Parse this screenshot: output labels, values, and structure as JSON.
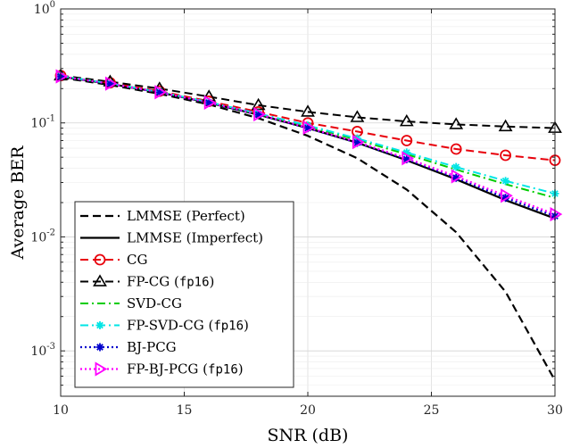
{
  "chart_data": {
    "type": "line",
    "xlabel": "SNR (dB)",
    "ylabel": "Average BER",
    "xlim": [
      10,
      30
    ],
    "ylim": [
      0.0004,
      1
    ],
    "yscale": "log",
    "grid": true,
    "legend_position": "bottom-left",
    "x_ticks": [
      10,
      15,
      20,
      25,
      30
    ],
    "x_tick_labels": [
      "10",
      "15",
      "20",
      "25",
      "30"
    ],
    "y_ticks": [
      {
        "value": 1,
        "base": "10",
        "exp": "0"
      },
      {
        "value": 0.1,
        "base": "10",
        "exp": "-1"
      },
      {
        "value": 0.01,
        "base": "10",
        "exp": "-2"
      },
      {
        "value": 0.001,
        "base": "10",
        "exp": "-3"
      }
    ],
    "x": [
      10,
      12,
      14,
      16,
      18,
      20,
      22,
      24,
      26,
      28,
      30
    ],
    "series": [
      {
        "name": "LMMSE (Perfect)",
        "label": "LMMSE (Perfect)",
        "label_code": "",
        "color": "#000000",
        "dash": "dashed",
        "width": 2.2,
        "marker": "none",
        "values": [
          0.25,
          0.215,
          0.18,
          0.145,
          0.11,
          0.077,
          0.049,
          0.026,
          0.011,
          0.0033,
          0.00055
        ]
      },
      {
        "name": "LMMSE (Imperfect)",
        "label": "LMMSE (Imperfect)",
        "label_code": "",
        "color": "#000000",
        "dash": "solid",
        "width": 2.2,
        "marker": "none",
        "values": [
          0.255,
          0.22,
          0.185,
          0.15,
          0.118,
          0.09,
          0.067,
          0.047,
          0.032,
          0.021,
          0.0145
        ]
      },
      {
        "name": "CG",
        "label": "CG",
        "label_code": "",
        "color": "#e8000b",
        "dash": "dashed",
        "width": 2,
        "marker": "circle",
        "values": [
          0.26,
          0.225,
          0.19,
          0.155,
          0.125,
          0.1,
          0.084,
          0.07,
          0.059,
          0.052,
          0.047
        ]
      },
      {
        "name": "FP-CG (fp16)",
        "label": "FP-CG (",
        "label_code": "fp16",
        "color": "#000000",
        "dash": "dashed",
        "width": 2,
        "marker": "triangle",
        "values": [
          0.26,
          0.23,
          0.2,
          0.17,
          0.143,
          0.125,
          0.112,
          0.103,
          0.097,
          0.093,
          0.09
        ]
      },
      {
        "name": "SVD-CG",
        "label": "SVD-CG",
        "label_code": "",
        "color": "#00cc00",
        "dash": "dashdot",
        "width": 2,
        "marker": "none",
        "values": [
          0.258,
          0.222,
          0.187,
          0.152,
          0.12,
          0.093,
          0.071,
          0.053,
          0.039,
          0.029,
          0.022
        ]
      },
      {
        "name": "FP-SVD-CG (fp16)",
        "label": "FP-SVD-CG (",
        "label_code": "fp16",
        "color": "#00e5e5",
        "dash": "dashdot",
        "width": 2,
        "marker": "asterisk",
        "values": [
          0.258,
          0.222,
          0.187,
          0.152,
          0.121,
          0.095,
          0.073,
          0.055,
          0.041,
          0.031,
          0.024
        ]
      },
      {
        "name": "BJ-PCG",
        "label": "BJ-PCG",
        "label_code": "",
        "color": "#0000cc",
        "dash": "dotted",
        "width": 2.2,
        "marker": "asterisk",
        "values": [
          0.255,
          0.22,
          0.185,
          0.15,
          0.118,
          0.09,
          0.067,
          0.048,
          0.033,
          0.022,
          0.0152
        ]
      },
      {
        "name": "FP-BJ-PCG (fp16)",
        "label": "FP-BJ-PCG (",
        "label_code": "fp16",
        "color": "#ff00ff",
        "dash": "dotted",
        "width": 2.2,
        "marker": "triangle-right",
        "values": [
          0.256,
          0.221,
          0.186,
          0.151,
          0.119,
          0.091,
          0.068,
          0.049,
          0.034,
          0.023,
          0.0158
        ]
      }
    ]
  }
}
